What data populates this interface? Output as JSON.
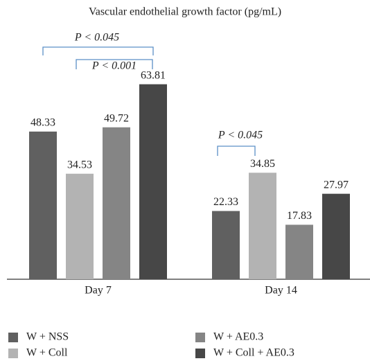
{
  "chart_data": {
    "type": "bar",
    "title": "Vascular endothelial growth factor (pg/mL)",
    "categories": [
      "Day 7",
      "Day 14"
    ],
    "series": [
      {
        "name": "W + NSS",
        "color": "#606060",
        "values": [
          48.33,
          22.33
        ]
      },
      {
        "name": "W + Coll",
        "color": "#b3b3b3",
        "values": [
          34.53,
          34.85
        ]
      },
      {
        "name": "W + AE0.3",
        "color": "#858585",
        "values": [
          49.72,
          17.83
        ]
      },
      {
        "name": "W + Coll + AE0.3",
        "color": "#474747",
        "values": [
          63.81,
          27.97
        ]
      }
    ],
    "annotations": [
      "P < 0.045",
      "P < 0.001",
      "P < 0.045"
    ]
  }
}
